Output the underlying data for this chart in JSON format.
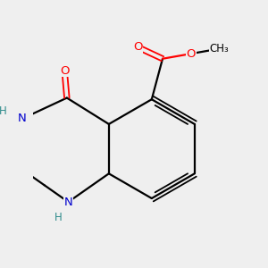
{
  "bg_color": "#efefef",
  "line_color": "#000000",
  "bond_width": 1.6,
  "atom_colors": {
    "N": "#0000cd",
    "O": "#ff0000",
    "C": "#000000",
    "H": "#2e8b8b"
  },
  "fontsize": 9.5
}
